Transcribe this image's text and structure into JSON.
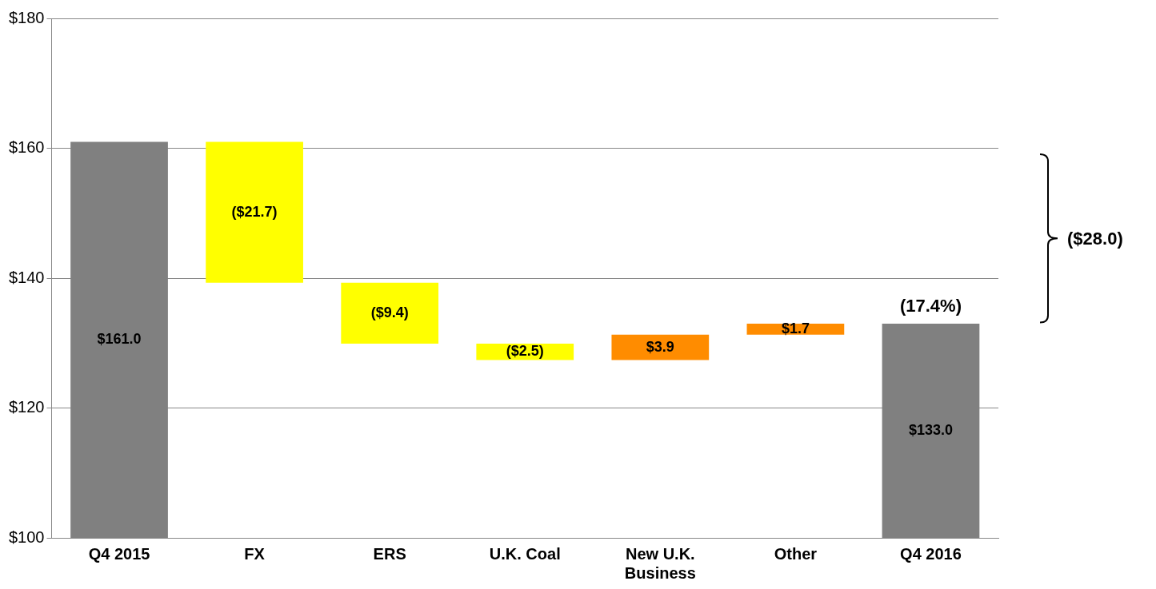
{
  "chart_data": {
    "type": "bar",
    "categories": [
      "Q4 2015",
      "FX",
      "ERS",
      "U.K. Coal",
      "New U.K. Business",
      "Other",
      "Q4 2016"
    ],
    "values": [
      161.0,
      -21.7,
      -9.4,
      -2.5,
      3.9,
      1.7,
      133.0
    ],
    "base": [
      0,
      161.0,
      139.3,
      129.9,
      127.4,
      131.3,
      0
    ],
    "colors": [
      "#808080",
      "#ffff00",
      "#ffff00",
      "#ffff00",
      "#ff8c00",
      "#ff8c00",
      "#808080"
    ],
    "value_labels": [
      "$161.0",
      "($21.7)",
      "($9.4)",
      "($2.5)",
      "$3.9",
      "$1.7",
      "$133.0"
    ],
    "ylim": [
      100,
      180
    ],
    "yticks": [
      {
        "value": 100,
        "label": "$100"
      },
      {
        "value": 120,
        "label": "$120"
      },
      {
        "value": 140,
        "label": "$140"
      },
      {
        "value": 160,
        "label": "$160"
      },
      {
        "value": 180,
        "label": "$180"
      }
    ],
    "grid": "y",
    "annotations": [
      {
        "text": "(17.4%)",
        "x": "Q4 2016",
        "y": 133.0
      },
      "($28.0)"
    ]
  }
}
